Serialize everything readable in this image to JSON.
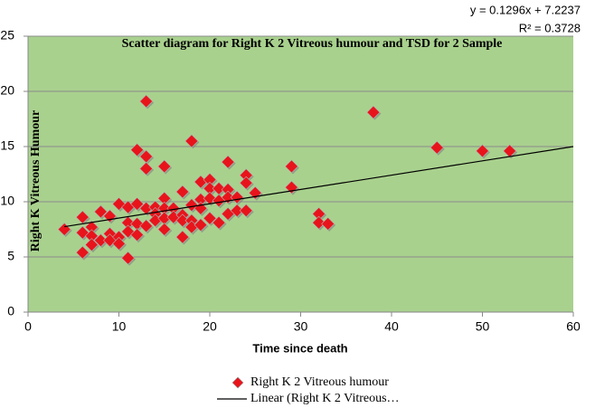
{
  "chart_data": {
    "type": "scatter",
    "title": "Scatter diagram for Right  K 2 Vitreous humour and TSD for 2 Sample",
    "x_label": "Time since death",
    "y_label": "Right K Vitreous Humour",
    "xlim": [
      0,
      60
    ],
    "xticks": [
      0,
      10,
      20,
      30,
      40,
      50,
      60
    ],
    "ylim": [
      0,
      25
    ],
    "yticks": [
      0,
      5,
      10,
      15,
      20,
      25
    ],
    "grid": true,
    "background": "#a9d18e",
    "legend": "bottom",
    "series": [
      {
        "name": "Right K 2 Vitreous humour",
        "color": "#e8141b",
        "x": [
          4,
          6,
          6,
          6,
          7,
          7,
          7,
          8,
          8,
          9,
          9,
          9,
          10,
          10,
          10,
          11,
          11,
          11,
          11,
          12,
          12,
          12,
          12,
          13,
          13,
          13,
          13,
          13,
          14,
          14,
          14,
          15,
          15,
          15,
          15,
          15,
          16,
          16,
          17,
          17,
          17,
          17,
          18,
          18,
          18,
          18,
          19,
          19,
          19,
          19,
          20,
          20,
          20,
          20,
          21,
          21,
          21,
          22,
          22,
          22,
          22,
          23,
          23,
          24,
          24,
          24,
          25,
          29,
          29,
          32,
          32,
          33,
          38,
          45,
          50,
          53
        ],
        "values": [
          7.5,
          8.6,
          7.2,
          5.4,
          7.7,
          6.9,
          6.1,
          9.1,
          6.5,
          8.7,
          7.1,
          6.5,
          9.8,
          6.8,
          6.2,
          9.5,
          8.1,
          7.3,
          4.9,
          14.7,
          9.8,
          8.0,
          7.0,
          19.1,
          14.1,
          13.0,
          9.4,
          7.8,
          9.5,
          8.9,
          8.3,
          13.2,
          10.3,
          9.4,
          8.5,
          7.5,
          9.4,
          8.6,
          10.9,
          8.8,
          8.3,
          6.8,
          15.5,
          9.7,
          8.3,
          7.7,
          11.8,
          10.2,
          9.4,
          7.9,
          12.0,
          11.2,
          10.3,
          8.5,
          11.2,
          10.1,
          8.1,
          13.6,
          11.1,
          10.4,
          8.9,
          10.4,
          9.2,
          12.4,
          11.7,
          9.2,
          10.8,
          13.2,
          11.3,
          8.9,
          8.1,
          8.0,
          18.1,
          14.9,
          14.6,
          14.6
        ]
      }
    ],
    "trendline": {
      "name": "Linear (Right K 2 Vitreous…",
      "color": "#000000",
      "slope": 0.1296,
      "intercept": 7.2237,
      "equation": "y = 0.1296x + 7.2237",
      "r_squared": "R² = 0.3728"
    }
  }
}
